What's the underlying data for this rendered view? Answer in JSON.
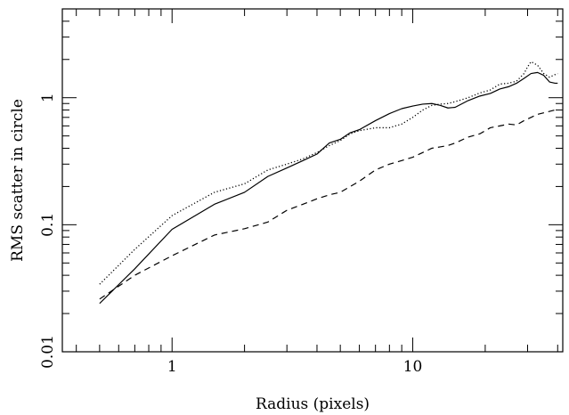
{
  "chart_data": {
    "type": "line",
    "title": "",
    "xlabel": "Radius (pixels)",
    "ylabel": "RMS scatter in circle",
    "xscale": "log",
    "yscale": "log",
    "xlim": [
      0.35,
      42
    ],
    "ylim": [
      0.01,
      5
    ],
    "x_ticks": [
      {
        "value": 1,
        "label": "1"
      },
      {
        "value": 10,
        "label": "10"
      }
    ],
    "y_ticks": [
      {
        "value": 0.01,
        "label": "0.01"
      },
      {
        "value": 0.1,
        "label": "0.1"
      },
      {
        "value": 1,
        "label": "1"
      }
    ],
    "grid": false,
    "legend": "none",
    "series": [
      {
        "style": "solid",
        "x": [
          0.5,
          0.7,
          1.0,
          1.5,
          2.0,
          2.5,
          3.0,
          3.5,
          4.0,
          4.5,
          5.0,
          5.5,
          6.0,
          7.0,
          8.0,
          9.0,
          10.0,
          11.0,
          12.0,
          13.0,
          14.0,
          15.0,
          17.0,
          19.0,
          21.0,
          23.0,
          25.0,
          27.0,
          29.0,
          31.0,
          33.0,
          35.0,
          37.0,
          39.0,
          40.0
        ],
        "y": [
          0.024,
          0.045,
          0.092,
          0.145,
          0.18,
          0.24,
          0.28,
          0.32,
          0.36,
          0.44,
          0.47,
          0.53,
          0.56,
          0.66,
          0.75,
          0.82,
          0.86,
          0.89,
          0.9,
          0.87,
          0.83,
          0.84,
          0.95,
          1.03,
          1.08,
          1.17,
          1.22,
          1.3,
          1.42,
          1.55,
          1.58,
          1.5,
          1.33,
          1.3,
          1.3
        ]
      },
      {
        "style": "dotted",
        "x": [
          0.5,
          0.7,
          1.0,
          1.5,
          2.0,
          2.5,
          3.0,
          3.5,
          4.0,
          4.5,
          5.0,
          5.5,
          6.0,
          7.0,
          8.0,
          9.0,
          10.0,
          11.0,
          12.0,
          13.0,
          14.0,
          15.0,
          17.0,
          19.0,
          21.0,
          23.0,
          25.0,
          27.0,
          29.0,
          30.0,
          31.0,
          33.0,
          35.0,
          37.0,
          39.0,
          40.0
        ],
        "y": [
          0.034,
          0.064,
          0.118,
          0.18,
          0.21,
          0.27,
          0.3,
          0.33,
          0.37,
          0.42,
          0.46,
          0.52,
          0.55,
          0.58,
          0.58,
          0.62,
          0.7,
          0.8,
          0.87,
          0.89,
          0.9,
          0.93,
          1.0,
          1.09,
          1.15,
          1.28,
          1.3,
          1.35,
          1.55,
          1.75,
          1.92,
          1.8,
          1.55,
          1.45,
          1.52,
          1.55
        ]
      },
      {
        "style": "dashed",
        "x": [
          0.5,
          0.7,
          1.0,
          1.5,
          2.0,
          2.5,
          3.0,
          3.5,
          4.0,
          4.5,
          5.0,
          5.5,
          6.0,
          7.0,
          8.0,
          9.0,
          10.0,
          11.0,
          12.0,
          13.0,
          14.0,
          15.0,
          17.0,
          19.0,
          21.0,
          23.0,
          25.0,
          27.0,
          29.0,
          31.0,
          33.0,
          35.0,
          37.0,
          39.0,
          40.0
        ],
        "y": [
          0.026,
          0.04,
          0.057,
          0.083,
          0.093,
          0.105,
          0.13,
          0.145,
          0.16,
          0.172,
          0.18,
          0.2,
          0.22,
          0.27,
          0.3,
          0.32,
          0.34,
          0.37,
          0.4,
          0.41,
          0.42,
          0.44,
          0.49,
          0.52,
          0.58,
          0.6,
          0.62,
          0.61,
          0.66,
          0.7,
          0.74,
          0.76,
          0.78,
          0.8,
          0.8
        ]
      }
    ]
  }
}
